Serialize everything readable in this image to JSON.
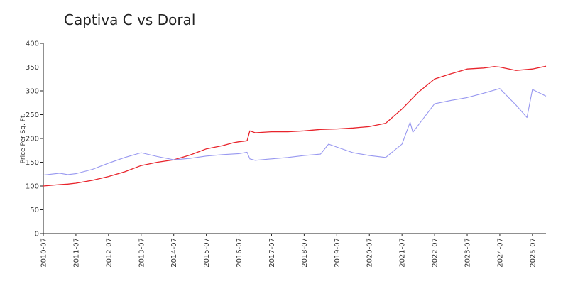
{
  "chart_data": {
    "type": "line",
    "title": "Captiva C vs Doral",
    "xlabel": "",
    "ylabel": "Price Per Sq. Ft.",
    "ylim": [
      0,
      400
    ],
    "xlim": [
      "2010-07",
      "2025-12"
    ],
    "yticks": [
      0,
      50,
      100,
      150,
      200,
      250,
      300,
      350,
      400
    ],
    "xticks": [
      "2010-07",
      "2011-07",
      "2012-07",
      "2013-07",
      "2014-07",
      "2015-07",
      "2016-07",
      "2017-07",
      "2018-07",
      "2019-07",
      "2020-07",
      "2021-07",
      "2022-07",
      "2023-07",
      "2024-07",
      "2025-07"
    ],
    "grid": false,
    "legend": "none",
    "series": [
      {
        "color": "#e8232b",
        "points": [
          [
            "2010-07",
            100
          ],
          [
            "2011-01",
            103
          ],
          [
            "2011-04",
            104
          ],
          [
            "2011-07",
            106
          ],
          [
            "2012-01",
            112
          ],
          [
            "2012-07",
            120
          ],
          [
            "2013-01",
            130
          ],
          [
            "2013-07",
            143
          ],
          [
            "2014-01",
            150
          ],
          [
            "2014-07",
            155
          ],
          [
            "2015-01",
            165
          ],
          [
            "2015-07",
            178
          ],
          [
            "2016-01",
            185
          ],
          [
            "2016-05",
            191
          ],
          [
            "2016-07",
            193
          ],
          [
            "2016-10",
            195
          ],
          [
            "2016-11",
            216
          ],
          [
            "2017-01",
            212
          ],
          [
            "2017-07",
            214
          ],
          [
            "2018-01",
            214
          ],
          [
            "2018-07",
            216
          ],
          [
            "2019-01",
            219
          ],
          [
            "2019-07",
            220
          ],
          [
            "2020-01",
            222
          ],
          [
            "2020-07",
            225
          ],
          [
            "2021-01",
            232
          ],
          [
            "2021-07",
            262
          ],
          [
            "2022-01",
            297
          ],
          [
            "2022-07",
            325
          ],
          [
            "2023-01",
            336
          ],
          [
            "2023-07",
            346
          ],
          [
            "2024-01",
            348
          ],
          [
            "2024-05",
            351
          ],
          [
            "2024-07",
            350
          ],
          [
            "2025-01",
            343
          ],
          [
            "2025-07",
            346
          ],
          [
            "2025-12",
            352
          ]
        ]
      },
      {
        "color": "#9898f0",
        "points": [
          [
            "2010-07",
            123
          ],
          [
            "2011-01",
            127
          ],
          [
            "2011-04",
            124
          ],
          [
            "2011-07",
            126
          ],
          [
            "2012-01",
            135
          ],
          [
            "2012-07",
            148
          ],
          [
            "2013-01",
            160
          ],
          [
            "2013-07",
            170
          ],
          [
            "2014-01",
            162
          ],
          [
            "2014-07",
            155
          ],
          [
            "2015-01",
            158
          ],
          [
            "2015-07",
            163
          ],
          [
            "2016-01",
            166
          ],
          [
            "2016-07",
            168
          ],
          [
            "2016-10",
            171
          ],
          [
            "2016-11",
            157
          ],
          [
            "2017-01",
            154
          ],
          [
            "2017-07",
            157
          ],
          [
            "2018-01",
            160
          ],
          [
            "2018-07",
            164
          ],
          [
            "2019-01",
            167
          ],
          [
            "2019-04",
            188
          ],
          [
            "2019-07",
            182
          ],
          [
            "2020-01",
            170
          ],
          [
            "2020-07",
            164
          ],
          [
            "2021-01",
            160
          ],
          [
            "2021-07",
            188
          ],
          [
            "2021-10",
            234
          ],
          [
            "2021-11",
            213
          ],
          [
            "2022-07",
            273
          ],
          [
            "2023-01",
            280
          ],
          [
            "2023-07",
            286
          ],
          [
            "2024-01",
            295
          ],
          [
            "2024-07",
            305
          ],
          [
            "2025-01",
            270
          ],
          [
            "2025-05",
            244
          ],
          [
            "2025-07",
            303
          ],
          [
            "2025-12",
            289
          ]
        ]
      }
    ]
  }
}
